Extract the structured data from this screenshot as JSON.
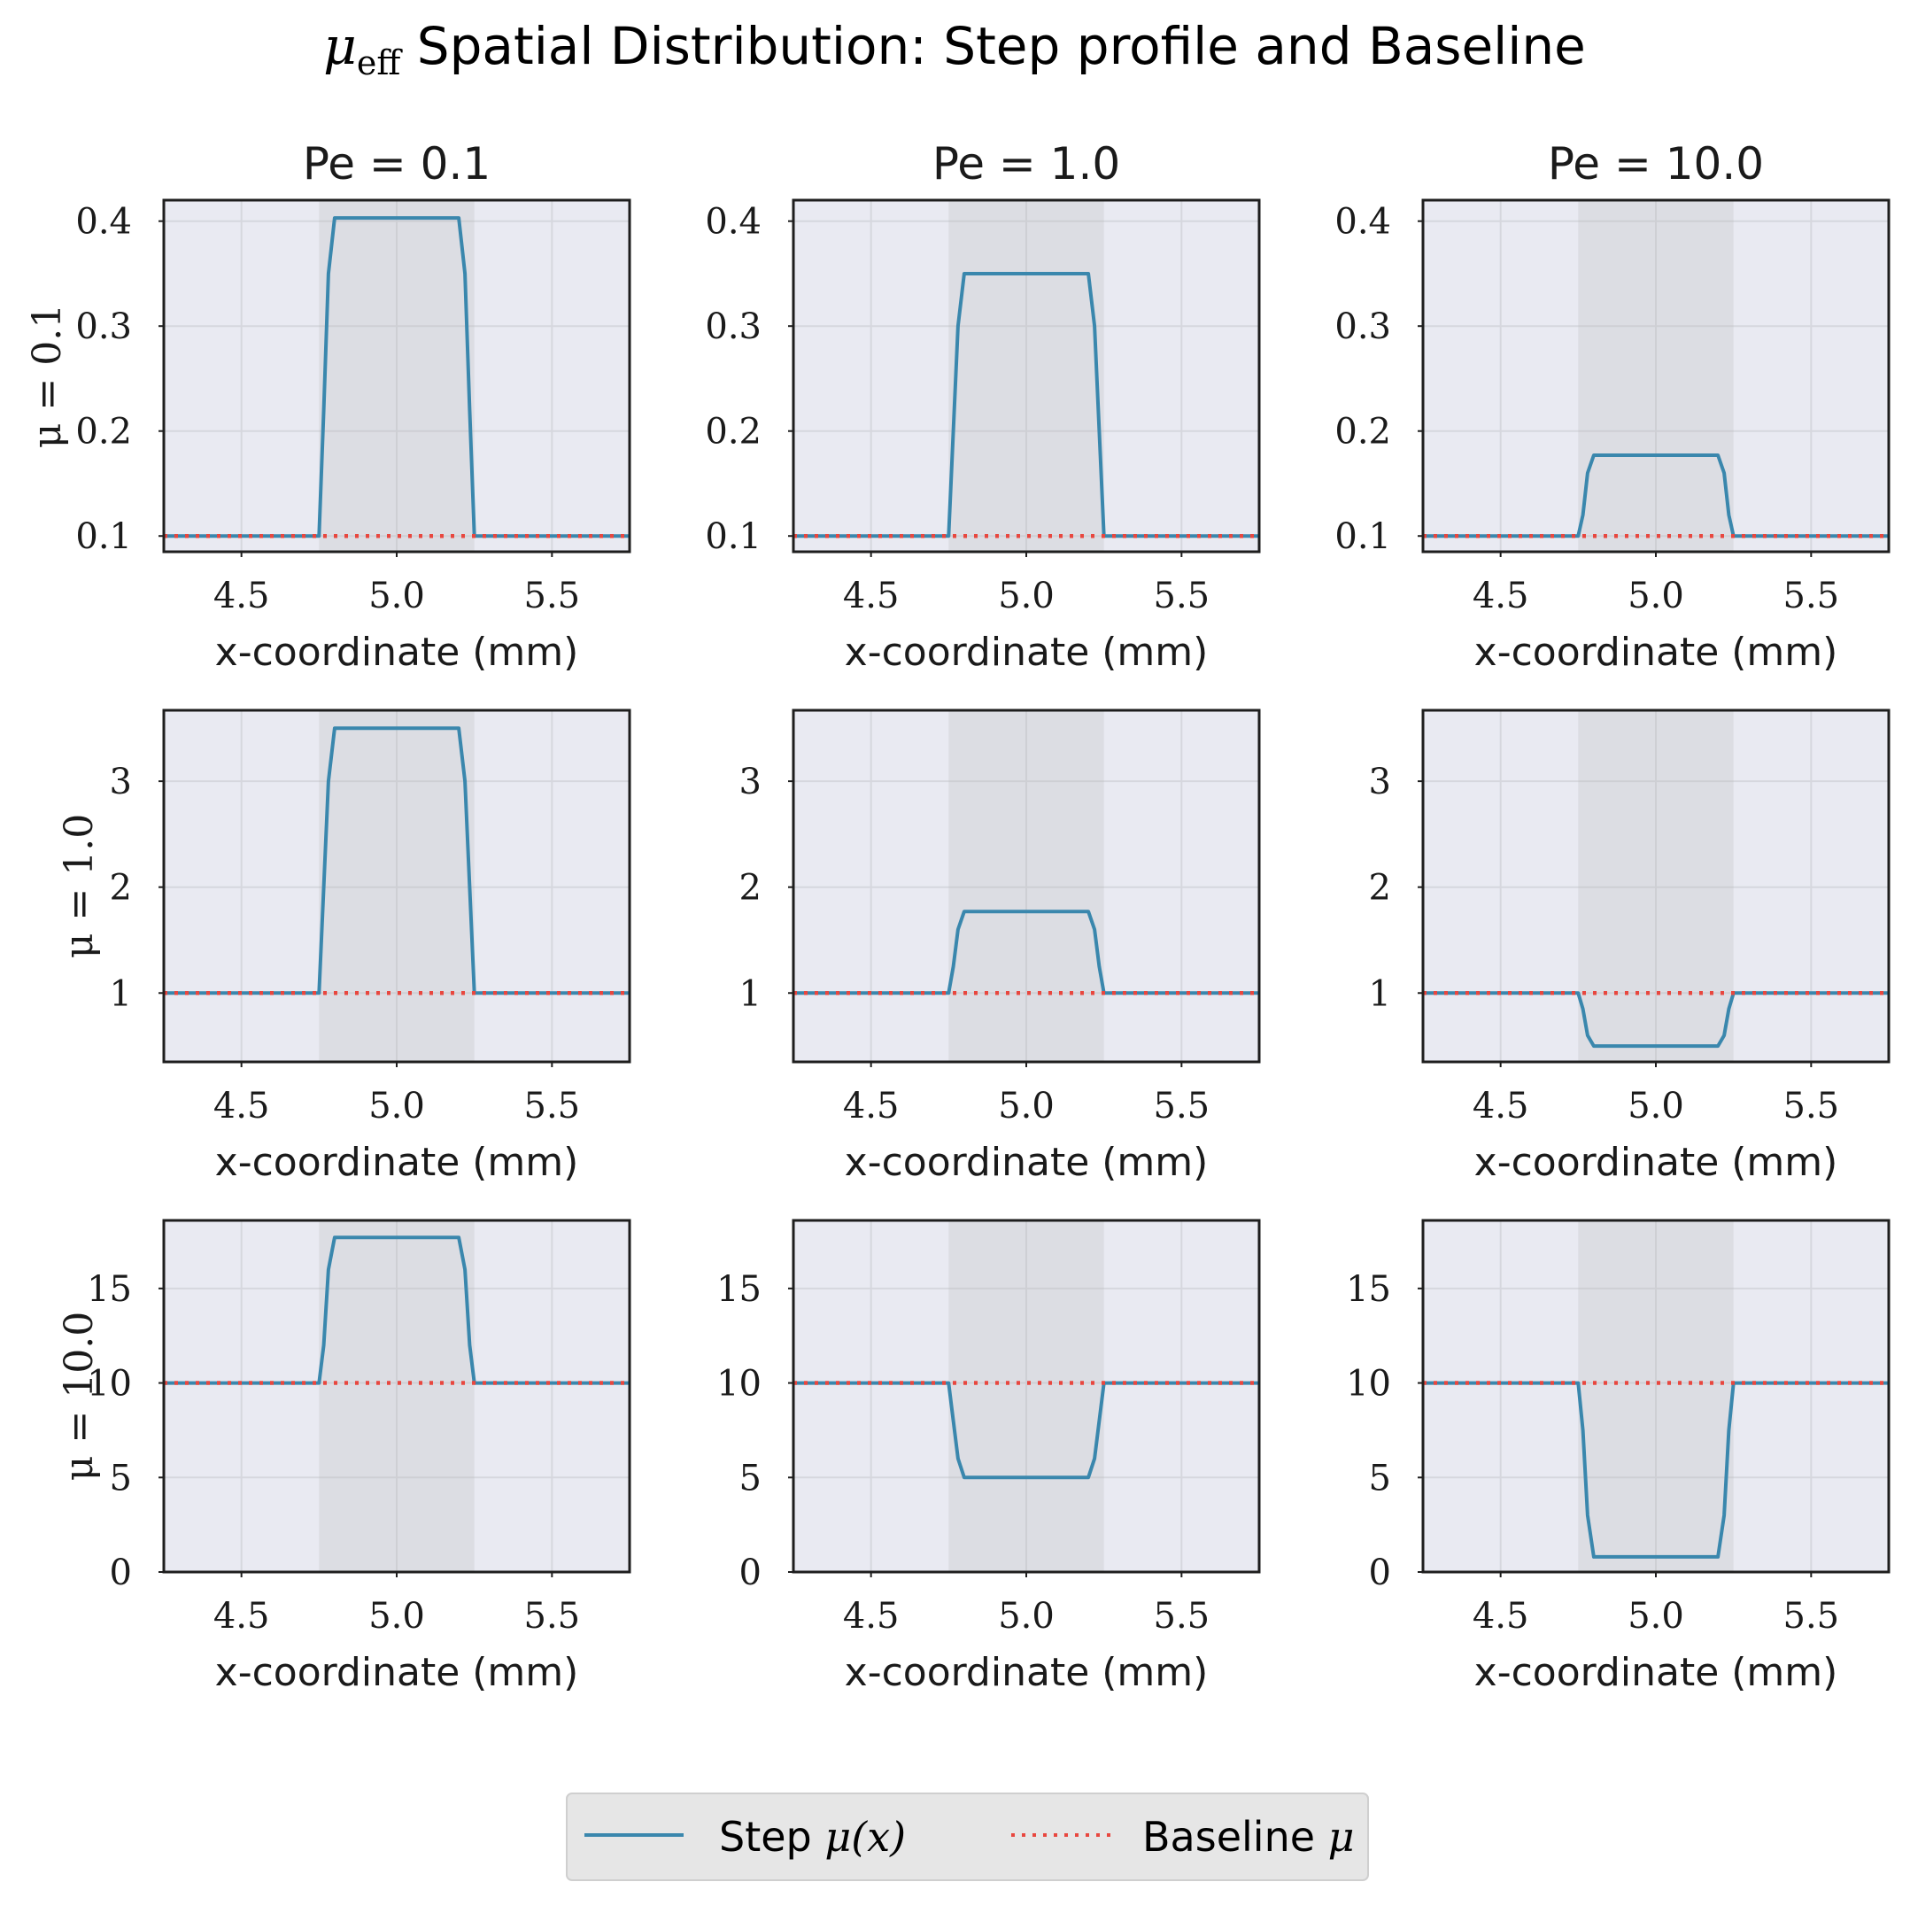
{
  "figure": {
    "title_symbol": "μ",
    "title_subscript": "eff",
    "title_text": " Spatial Distribution: Step profile and Baseline"
  },
  "legend": {
    "entries": [
      {
        "label": "Step ",
        "math": "μ(x)",
        "color": "#3a87ad",
        "style": "solid"
      },
      {
        "label": "Baseline ",
        "math": "μ",
        "color": "#e8473f",
        "style": "dotted"
      }
    ]
  },
  "colors": {
    "axes_background": "#e9eaf2",
    "shaded_region": "#b8b8b8",
    "grid": "#d6d7de",
    "step_line": "#3a87ad",
    "baseline_line": "#e8473f",
    "spine": "#1e1e1e"
  },
  "chart_data": {
    "type": "line",
    "layout": "3x3 grid",
    "column_titles": [
      "Pe = 0.1",
      "Pe = 1.0",
      "Pe = 10.0"
    ],
    "row_labels": [
      "μ = 0.1",
      "μ = 1.0",
      "μ = 10.0"
    ],
    "xlabel": "x-coordinate (mm)",
    "xlim": [
      4.25,
      5.75
    ],
    "xticks": [
      4.5,
      5.0,
      5.5
    ],
    "xtick_labels": [
      "4.5",
      "5.0",
      "5.5"
    ],
    "shaded_x_range": [
      4.75,
      5.25
    ],
    "step_profile_x": [
      4.25,
      4.75,
      4.765,
      4.78,
      4.8,
      5.2,
      5.22,
      5.235,
      5.25,
      5.75
    ],
    "rows": [
      {
        "mu": 0.1,
        "ylim": [
          0.085,
          0.42
        ],
        "yticks": [
          0.1,
          0.2,
          0.3,
          0.4
        ],
        "ytick_labels": [
          "0.1",
          "0.2",
          "0.3",
          "0.4"
        ],
        "panels": [
          {
            "pe": 0.1,
            "baseline": 0.1,
            "step_y": [
              0.1,
              0.1,
              0.22,
              0.35,
              0.403,
              0.403,
              0.35,
              0.22,
              0.1,
              0.1
            ]
          },
          {
            "pe": 1.0,
            "baseline": 0.1,
            "step_y": [
              0.1,
              0.1,
              0.2,
              0.3,
              0.35,
              0.35,
              0.3,
              0.2,
              0.1,
              0.1
            ]
          },
          {
            "pe": 10.0,
            "baseline": 0.1,
            "step_y": [
              0.1,
              0.1,
              0.12,
              0.16,
              0.177,
              0.177,
              0.16,
              0.12,
              0.1,
              0.1
            ]
          }
        ]
      },
      {
        "mu": 1.0,
        "ylim": [
          0.35,
          3.67
        ],
        "yticks": [
          1,
          2,
          3
        ],
        "ytick_labels": [
          "1",
          "2",
          "3"
        ],
        "panels": [
          {
            "pe": 0.1,
            "baseline": 1.0,
            "step_y": [
              1.0,
              1.0,
              2.0,
              3.0,
              3.5,
              3.5,
              3.0,
              2.0,
              1.0,
              1.0
            ]
          },
          {
            "pe": 1.0,
            "baseline": 1.0,
            "step_y": [
              1.0,
              1.0,
              1.25,
              1.6,
              1.77,
              1.77,
              1.6,
              1.25,
              1.0,
              1.0
            ]
          },
          {
            "pe": 10.0,
            "baseline": 1.0,
            "step_y": [
              1.0,
              1.0,
              0.85,
              0.6,
              0.5,
              0.5,
              0.6,
              0.85,
              1.0,
              1.0
            ]
          }
        ]
      },
      {
        "mu": 10.0,
        "ylim": [
          0,
          18.6
        ],
        "yticks": [
          0,
          5,
          10,
          15
        ],
        "ytick_labels": [
          "0",
          "5",
          "10",
          "15"
        ],
        "panels": [
          {
            "pe": 0.1,
            "baseline": 10.0,
            "step_y": [
              10.0,
              10.0,
              12.0,
              16.0,
              17.7,
              17.7,
              16.0,
              12.0,
              10.0,
              10.0
            ]
          },
          {
            "pe": 1.0,
            "baseline": 10.0,
            "step_y": [
              10.0,
              10.0,
              8.0,
              6.0,
              5.0,
              5.0,
              6.0,
              8.0,
              10.0,
              10.0
            ]
          },
          {
            "pe": 10.0,
            "baseline": 10.0,
            "step_y": [
              10.0,
              10.0,
              7.5,
              3.0,
              0.8,
              0.8,
              3.0,
              7.5,
              10.0,
              10.0
            ]
          }
        ]
      }
    ]
  }
}
